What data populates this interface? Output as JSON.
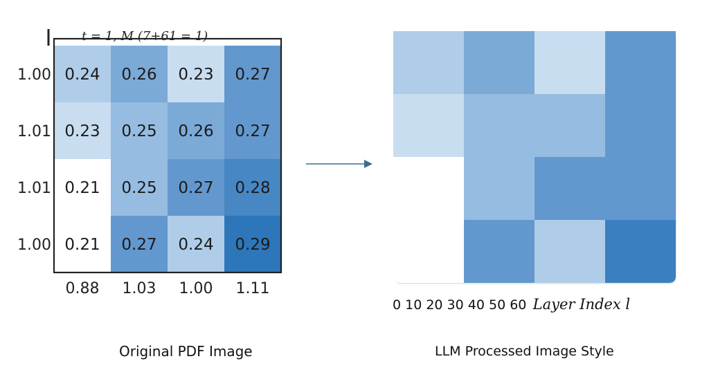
{
  "captions": {
    "left": "Original PDF Image",
    "right": "LLM Processed Image Style"
  },
  "colors": {
    "arrow": "#3d6e8f",
    "frame": "#222222"
  },
  "chart_data": [
    {
      "type": "heatmap",
      "panel": "left",
      "header_fragment": "t = 1, M (7+61 = 1)",
      "row_labels": [
        "1.00",
        "1.01",
        "1.01",
        "1.00"
      ],
      "col_labels": [
        "0.88",
        "1.03",
        "1.00",
        "1.11"
      ],
      "values": [
        [
          0.24,
          0.26,
          0.23,
          0.27
        ],
        [
          0.23,
          0.25,
          0.26,
          0.27
        ],
        [
          0.21,
          0.25,
          0.27,
          0.28
        ],
        [
          0.21,
          0.27,
          0.24,
          0.29
        ]
      ],
      "value_labels": [
        [
          "0.24",
          "0.26",
          "0.23",
          "0.27"
        ],
        [
          "0.23",
          "0.25",
          "0.26",
          "0.27"
        ],
        [
          "0.21",
          "0.25",
          "0.27",
          "0.28"
        ],
        [
          "0.21",
          "0.27",
          "0.24",
          "0.29"
        ]
      ],
      "colormap": "Blues",
      "vmin": 0.21,
      "vmax": 0.29
    },
    {
      "type": "heatmap",
      "panel": "right",
      "x_ticks_text": "0 10 20 30 40 50 60",
      "xlabel": "Layer Index l",
      "values": [
        [
          0.24,
          0.26,
          0.23,
          0.27
        ],
        [
          0.23,
          0.25,
          0.25,
          0.27
        ],
        [
          0.21,
          0.25,
          0.27,
          0.27
        ],
        [
          0.21,
          0.27,
          0.24,
          0.285
        ]
      ],
      "colormap": "Blues",
      "vmin": 0.21,
      "vmax": 0.29
    }
  ]
}
